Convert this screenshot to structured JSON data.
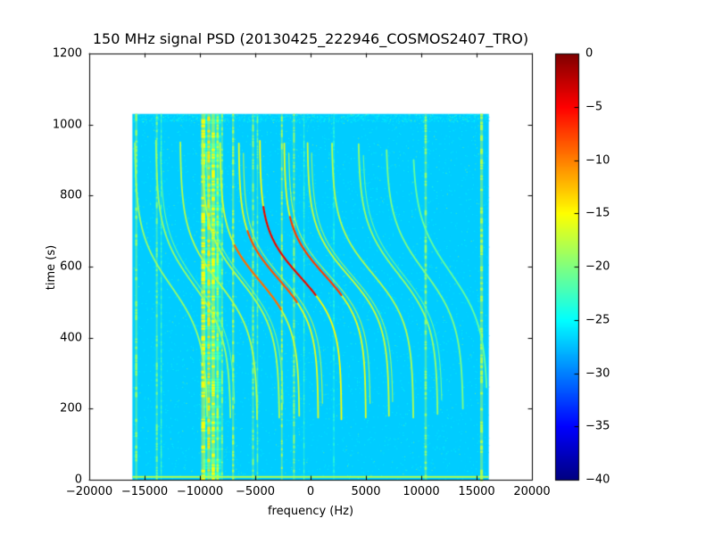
{
  "chart_data": {
    "type": "heatmap",
    "title": "150 MHz signal PSD (20130425_222946_COSMOS2407_TRO)",
    "xlabel": "frequency (Hz)",
    "ylabel": "time (s)",
    "xlim": [
      -20000,
      20000
    ],
    "ylim": [
      0,
      1200
    ],
    "x_ticks": [
      -20000,
      -15000,
      -10000,
      -5000,
      0,
      5000,
      10000,
      15000,
      20000
    ],
    "y_ticks": [
      0,
      200,
      400,
      600,
      800,
      1000,
      1200
    ],
    "grid": false,
    "colormap": "jet",
    "colorbar": {
      "vmin": -40,
      "vmax": 0,
      "ticks": [
        0,
        -5,
        -10,
        -15,
        -20,
        -25,
        -30,
        -35,
        -40
      ]
    },
    "data_extent": {
      "freq_min": -16100,
      "freq_max": 16100,
      "time_min": 0,
      "time_max": 1030
    },
    "background_value_db": -27,
    "edge_lines": [
      {
        "time_s": 8,
        "level_db": -18,
        "thickness_px": 2
      }
    ],
    "rfi_stripes": [
      {
        "freq_hz": -8900,
        "width_hz": 1600,
        "level_db": -24
      },
      {
        "freq_hz": -15750,
        "width_hz": 200,
        "level_db": -19
      },
      {
        "freq_hz": -13900,
        "width_hz": 160,
        "level_db": -20
      },
      {
        "freq_hz": -13500,
        "width_hz": 100,
        "level_db": -22
      },
      {
        "freq_hz": -9700,
        "width_hz": 350,
        "level_db": -15
      },
      {
        "freq_hz": -9200,
        "width_hz": 250,
        "level_db": -14
      },
      {
        "freq_hz": -8800,
        "width_hz": 300,
        "level_db": -15
      },
      {
        "freq_hz": -8400,
        "width_hz": 200,
        "level_db": -17
      },
      {
        "freq_hz": -8000,
        "width_hz": 150,
        "level_db": -19
      },
      {
        "freq_hz": -7000,
        "width_hz": 180,
        "level_db": -18
      },
      {
        "freq_hz": -5200,
        "width_hz": 150,
        "level_db": -19
      },
      {
        "freq_hz": -4800,
        "width_hz": 120,
        "level_db": -20
      },
      {
        "freq_hz": -2600,
        "width_hz": 150,
        "level_db": -18
      },
      {
        "freq_hz": -1500,
        "width_hz": 150,
        "level_db": -19
      },
      {
        "freq_hz": -600,
        "width_hz": 100,
        "level_db": -22
      },
      {
        "freq_hz": 2100,
        "width_hz": 100,
        "level_db": -23
      },
      {
        "freq_hz": 10400,
        "width_hz": 200,
        "level_db": -19
      },
      {
        "freq_hz": 15450,
        "width_hz": 250,
        "level_db": -18
      }
    ],
    "doppler_traces": [
      {
        "f_center_hz": -12600,
        "doppler_amplitude_hz": 3300,
        "t_mid_s": 545,
        "tau_s": 150,
        "t_start_s": 180,
        "t_end_s": 950,
        "level_db": -19
      },
      {
        "f_center_hz": -10600,
        "doppler_amplitude_hz": 3400,
        "t_mid_s": 550,
        "tau_s": 150,
        "t_start_s": 175,
        "t_end_s": 955,
        "level_db": -19,
        "pair_offset_hz": 400
      },
      {
        "f_center_hz": -8300,
        "doppler_amplitude_hz": 3500,
        "t_mid_s": 555,
        "tau_s": 145,
        "t_start_s": 170,
        "t_end_s": 950,
        "level_db": -18
      },
      {
        "f_center_hz": -6300,
        "doppler_amplitude_hz": 3500,
        "t_mid_s": 560,
        "tau_s": 140,
        "t_start_s": 175,
        "t_end_s": 955,
        "level_db": -18,
        "pair_offset_hz": 350
      },
      {
        "f_center_hz": -4600,
        "doppler_amplitude_hz": 3600,
        "t_mid_s": 560,
        "tau_s": 135,
        "t_start_s": 180,
        "t_end_s": 950,
        "level_db": -17,
        "hot": {
          "t_start_s": 480,
          "t_end_s": 660,
          "level_db": -9
        }
      },
      {
        "f_center_hz": -2900,
        "doppler_amplitude_hz": 3600,
        "t_mid_s": 565,
        "tau_s": 130,
        "t_start_s": 175,
        "t_end_s": 950,
        "level_db": -16,
        "pair_offset_hz": 400,
        "hot": {
          "t_start_s": 500,
          "t_end_s": 700,
          "level_db": -8
        }
      },
      {
        "f_center_hz": -900,
        "doppler_amplitude_hz": 3700,
        "t_mid_s": 570,
        "tau_s": 130,
        "t_start_s": 170,
        "t_end_s": 955,
        "level_db": -15,
        "hot": {
          "t_start_s": 520,
          "t_end_s": 770,
          "level_db": -4
        }
      },
      {
        "f_center_hz": 1300,
        "doppler_amplitude_hz": 3700,
        "t_mid_s": 575,
        "tau_s": 130,
        "t_start_s": 175,
        "t_end_s": 950,
        "level_db": -16,
        "pair_offset_hz": 400,
        "hot": {
          "t_start_s": 520,
          "t_end_s": 740,
          "level_db": -7
        }
      },
      {
        "f_center_hz": 3400,
        "doppler_amplitude_hz": 3700,
        "t_mid_s": 575,
        "tau_s": 135,
        "t_start_s": 180,
        "t_end_s": 950,
        "level_db": -17,
        "pair_offset_hz": 350
      },
      {
        "f_center_hz": 5600,
        "doppler_amplitude_hz": 3700,
        "t_mid_s": 580,
        "tau_s": 140,
        "t_start_s": 175,
        "t_end_s": 950,
        "level_db": -18
      },
      {
        "f_center_hz": 7900,
        "doppler_amplitude_hz": 3600,
        "t_mid_s": 580,
        "tau_s": 145,
        "t_start_s": 185,
        "t_end_s": 945,
        "level_db": -19,
        "pair_offset_hz": 400
      },
      {
        "f_center_hz": 10300,
        "doppler_amplitude_hz": 3500,
        "t_mid_s": 585,
        "tau_s": 150,
        "t_start_s": 200,
        "t_end_s": 930,
        "level_db": -20
      },
      {
        "f_center_hz": 12600,
        "doppler_amplitude_hz": 3400,
        "t_mid_s": 585,
        "tau_s": 155,
        "t_start_s": 260,
        "t_end_s": 900,
        "level_db": -21
      }
    ]
  }
}
